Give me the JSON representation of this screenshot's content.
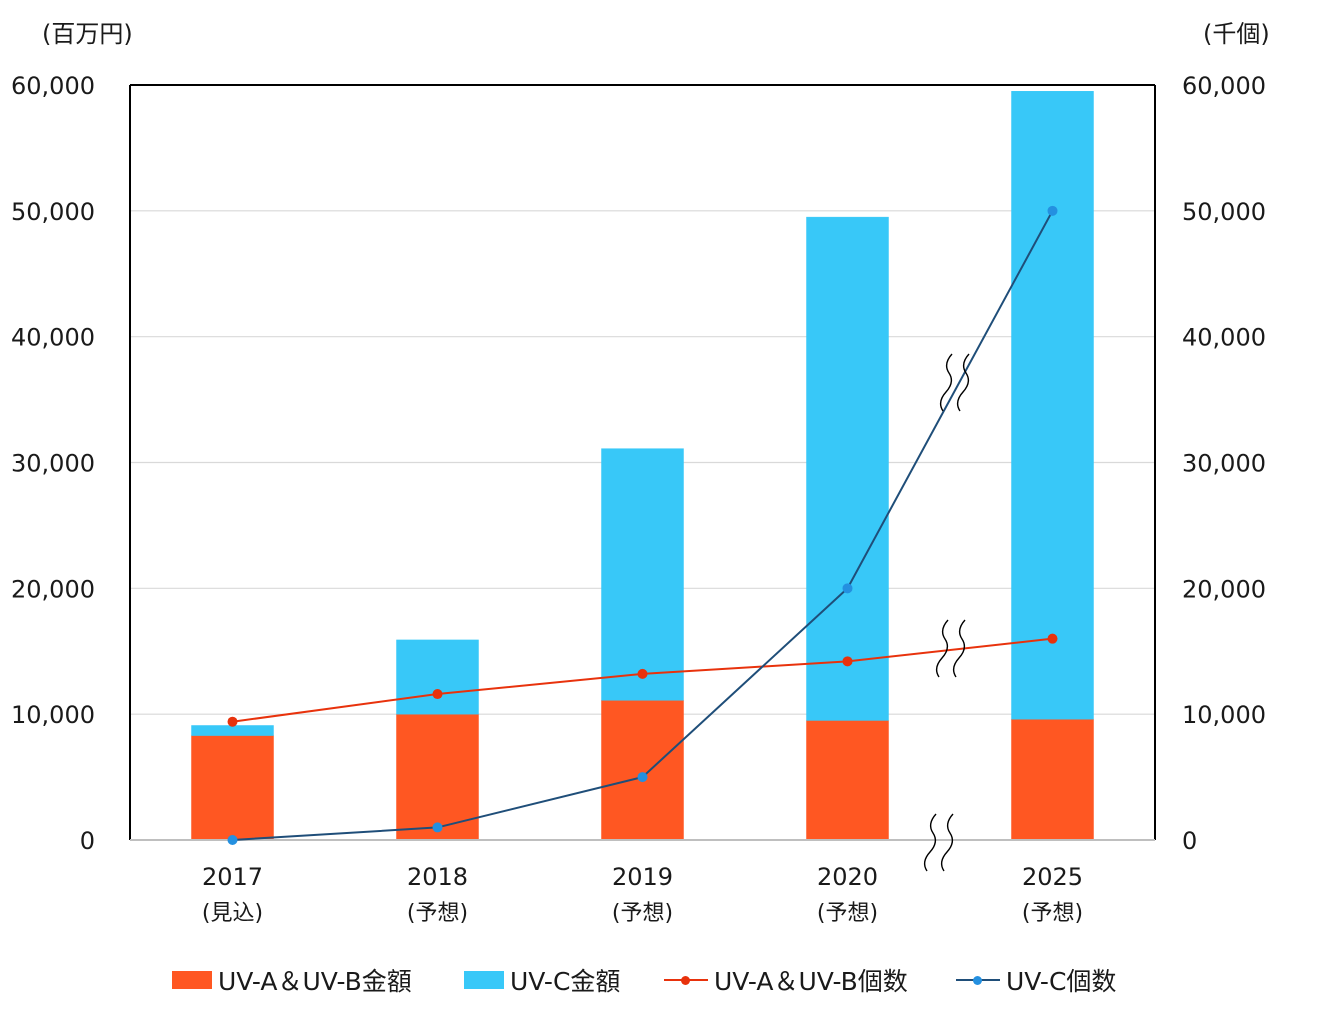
{
  "chart_data": {
    "type": "bar",
    "stacked": true,
    "categories": [
      "2017",
      "2018",
      "2019",
      "2020",
      "2025"
    ],
    "category_sublabels": [
      "(見込)",
      "(予想)",
      "(予想)",
      "(予想)",
      "(予想)"
    ],
    "y_left_unit": "(百万円)",
    "y_right_unit": "(千個)",
    "ylim_left": [
      0,
      60000
    ],
    "ylim_right": [
      0,
      60000
    ],
    "yticks_left": [
      "0",
      "10,000",
      "20,000",
      "30,000",
      "40,000",
      "50,000",
      "60,000"
    ],
    "yticks_right": [
      "0",
      "10,000",
      "20,000",
      "30,000",
      "40,000",
      "50,000",
      "60,000"
    ],
    "grid": true,
    "axis_break_marks": true,
    "legend_position": "bottom",
    "series": [
      {
        "name": "UV-A＆UV-B金額",
        "type": "bar",
        "axis": "left",
        "color": "#ff5722",
        "values": [
          8300,
          10000,
          11100,
          9500,
          9600
        ]
      },
      {
        "name": "UV-C金額",
        "type": "bar",
        "axis": "left",
        "color": "#38c8f8",
        "values": [
          800,
          5900,
          20000,
          40000,
          49900
        ]
      },
      {
        "name": "UV-A＆UV-B個数",
        "type": "line",
        "axis": "right",
        "color": "#e8320c",
        "values": [
          9400,
          11600,
          13200,
          14200,
          16000
        ]
      },
      {
        "name": "UV-C個数",
        "type": "line",
        "axis": "right",
        "color": "#1f4e79",
        "marker_color": "#2490e0",
        "values": [
          0,
          1000,
          5000,
          20000,
          50000
        ]
      }
    ]
  }
}
